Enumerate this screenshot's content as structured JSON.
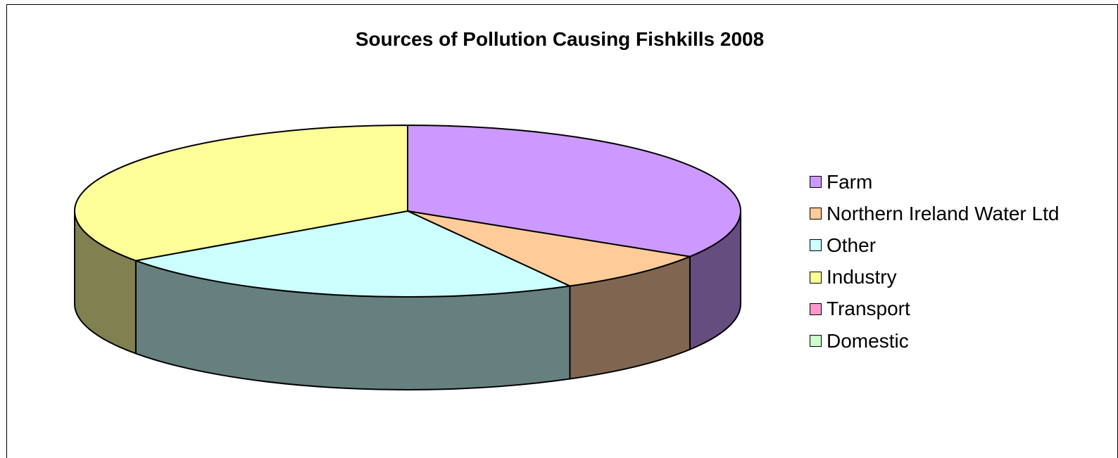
{
  "chart_data": {
    "type": "pie",
    "title": "Sources of Pollution Causing Fishkills 2008",
    "style": "3d",
    "legend_position": "right",
    "categories": [
      "Farm",
      "Northern Ireland Water Ltd",
      "Other",
      "Industry",
      "Transport",
      "Domestic"
    ],
    "values": [
      33.9,
      8.0,
      23.3,
      34.8,
      0,
      0
    ],
    "colors": [
      "#CC99FF",
      "#FFCC99",
      "#CCFFFF",
      "#FFFF99",
      "#FF99CC",
      "#CCFFCC"
    ],
    "side_colors": [
      "#664D80",
      "#806650",
      "#668080",
      "#808050",
      "#804D66",
      "#668066"
    ]
  }
}
